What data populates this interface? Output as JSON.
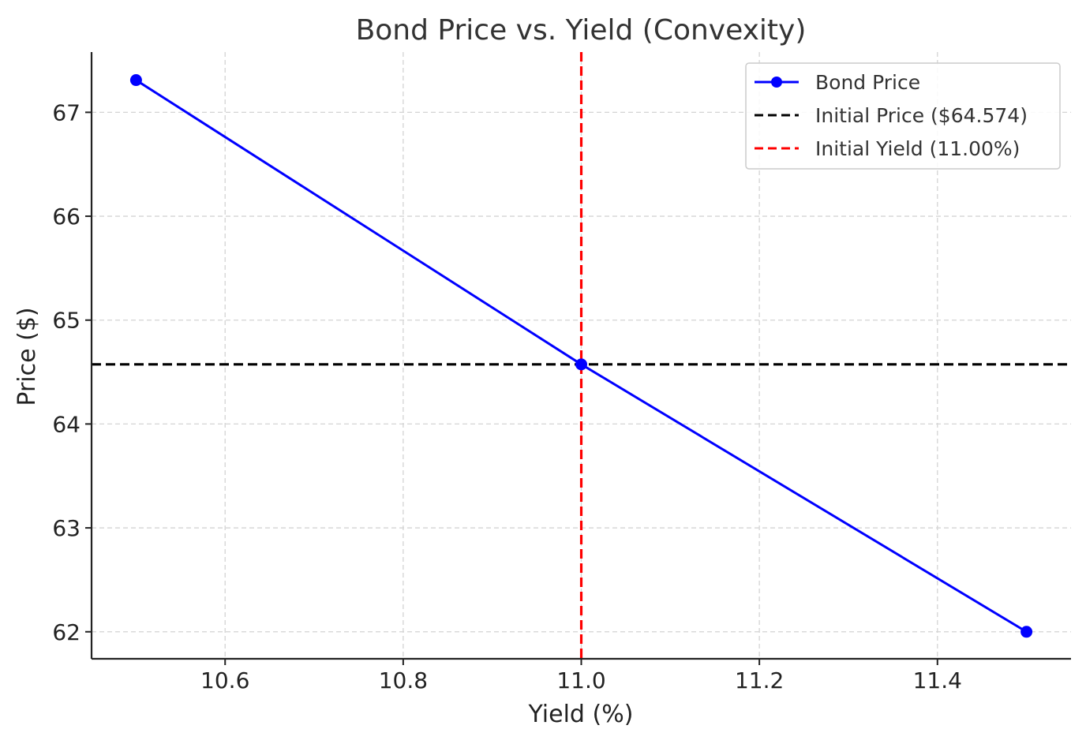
{
  "chart_data": {
    "type": "line",
    "title": "Bond Price vs. Yield (Convexity)",
    "xlabel": "Yield (%)",
    "ylabel": "Price ($)",
    "xlim": [
      10.45,
      11.55
    ],
    "ylim": [
      61.74,
      67.58
    ],
    "xticks": [
      10.6,
      10.8,
      11.0,
      11.2,
      11.4
    ],
    "xtick_labels": [
      "10.6",
      "10.8",
      "11.0",
      "11.2",
      "11.4"
    ],
    "yticks": [
      62,
      63,
      64,
      65,
      66,
      67
    ],
    "ytick_labels": [
      "62",
      "63",
      "64",
      "65",
      "66",
      "67"
    ],
    "grid": true,
    "legend_position": "top-right",
    "series": [
      {
        "name": "Bond Price",
        "color": "#0000ff",
        "style": "solid",
        "marker": "circle",
        "x": [
          10.5,
          11.0,
          11.5
        ],
        "y": [
          67.31,
          64.574,
          62.0
        ]
      }
    ],
    "reference_lines": [
      {
        "name": "Initial Price ($64.574)",
        "orientation": "horizontal",
        "value": 64.574,
        "color": "#000000",
        "style": "dashed"
      },
      {
        "name": "Initial Yield (11.00%)",
        "orientation": "vertical",
        "value": 11.0,
        "color": "#ff0000",
        "style": "dashed"
      }
    ]
  }
}
